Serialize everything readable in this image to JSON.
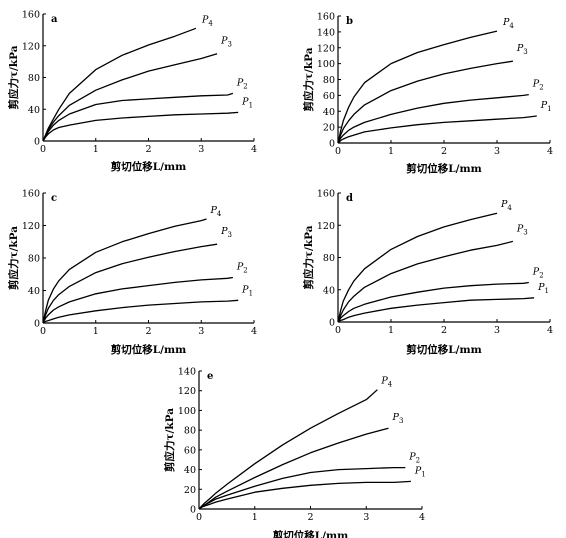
{
  "chart_data": [
    {
      "type": "line",
      "panel_label": "a",
      "xlabel": "剪切位移L/mm",
      "ylabel": "剪应力τ/kPa",
      "xlim": [
        0,
        4
      ],
      "ylim": [
        0,
        160
      ],
      "xticks": [
        "0",
        "1",
        "2",
        "3",
        "4"
      ],
      "yticks": [
        "0",
        "40",
        "80",
        "120",
        "160"
      ],
      "series": [
        {
          "name": "P",
          "sub": "1",
          "x": [
            0,
            0.05,
            0.1,
            0.2,
            0.3,
            0.5,
            1.0,
            1.5,
            2.0,
            2.5,
            3.0,
            3.5,
            3.7
          ],
          "y": [
            0,
            5,
            9,
            14,
            17,
            20,
            26,
            29,
            31,
            33,
            34,
            35,
            36
          ]
        },
        {
          "name": "P",
          "sub": "2",
          "x": [
            0,
            0.05,
            0.1,
            0.2,
            0.3,
            0.5,
            1.0,
            1.5,
            2.0,
            2.5,
            3.0,
            3.5,
            3.6
          ],
          "y": [
            0,
            6,
            12,
            20,
            26,
            34,
            46,
            51,
            53,
            55,
            57,
            58,
            60
          ]
        },
        {
          "name": "P",
          "sub": "3",
          "x": [
            0,
            0.05,
            0.1,
            0.2,
            0.3,
            0.5,
            1.0,
            1.5,
            2.0,
            2.5,
            3.0,
            3.3
          ],
          "y": [
            0,
            7,
            14,
            24,
            32,
            45,
            64,
            77,
            88,
            96,
            104,
            110
          ]
        },
        {
          "name": "P",
          "sub": "4",
          "x": [
            0,
            0.05,
            0.1,
            0.2,
            0.3,
            0.5,
            1.0,
            1.5,
            2.0,
            2.5,
            2.9
          ],
          "y": [
            0,
            8,
            16,
            28,
            40,
            60,
            90,
            108,
            121,
            132,
            142
          ]
        }
      ]
    },
    {
      "type": "line",
      "panel_label": "b",
      "xlabel": "剪切位移L/mm",
      "ylabel": "剪应力τ/kPa",
      "xlim": [
        0,
        4
      ],
      "ylim": [
        0,
        160
      ],
      "xticks": [
        "0",
        "1",
        "2",
        "3",
        "4"
      ],
      "yticks": [
        "0",
        "20",
        "40",
        "60",
        "80",
        "100",
        "120",
        "140",
        "160"
      ],
      "series": [
        {
          "name": "P",
          "sub": "1",
          "x": [
            0,
            0.05,
            0.1,
            0.2,
            0.3,
            0.5,
            1.0,
            1.5,
            2.0,
            2.5,
            3.0,
            3.5,
            3.75
          ],
          "y": [
            0,
            3,
            5,
            8,
            10,
            14,
            19,
            23,
            26,
            28,
            30,
            32,
            34
          ]
        },
        {
          "name": "P",
          "sub": "2",
          "x": [
            0,
            0.05,
            0.1,
            0.2,
            0.3,
            0.5,
            1.0,
            1.5,
            2.0,
            2.5,
            3.0,
            3.5,
            3.6
          ],
          "y": [
            0,
            6,
            10,
            16,
            20,
            26,
            36,
            44,
            50,
            54,
            57,
            60,
            61
          ]
        },
        {
          "name": "P",
          "sub": "3",
          "x": [
            0,
            0.05,
            0.1,
            0.2,
            0.3,
            0.5,
            1.0,
            1.5,
            2.0,
            2.5,
            3.0,
            3.3
          ],
          "y": [
            0,
            10,
            18,
            28,
            36,
            48,
            66,
            78,
            87,
            94,
            100,
            103
          ]
        },
        {
          "name": "P",
          "sub": "4",
          "x": [
            0,
            0.05,
            0.1,
            0.2,
            0.3,
            0.5,
            1.0,
            1.5,
            2.0,
            2.5,
            3.0
          ],
          "y": [
            0,
            15,
            28,
            45,
            58,
            76,
            100,
            114,
            124,
            133,
            141
          ]
        }
      ]
    },
    {
      "type": "line",
      "panel_label": "c",
      "xlabel": "剪切位移L/mm",
      "ylabel": "剪应力τ/kPa",
      "xlim": [
        0,
        4
      ],
      "ylim": [
        0,
        160
      ],
      "xticks": [
        "0",
        "1",
        "2",
        "3",
        "4"
      ],
      "yticks": [
        "0",
        "40",
        "80",
        "120",
        "160"
      ],
      "series": [
        {
          "name": "P",
          "sub": "1",
          "x": [
            0,
            0.05,
            0.1,
            0.2,
            0.3,
            0.5,
            1.0,
            1.5,
            2.0,
            2.5,
            3.0,
            3.5,
            3.7
          ],
          "y": [
            0,
            2,
            3,
            5,
            7,
            10,
            15,
            19,
            22,
            24,
            26,
            27,
            28
          ]
        },
        {
          "name": "P",
          "sub": "2",
          "x": [
            0,
            0.05,
            0.1,
            0.2,
            0.3,
            0.5,
            1.0,
            1.5,
            2.0,
            2.5,
            3.0,
            3.5,
            3.6
          ],
          "y": [
            0,
            6,
            10,
            16,
            20,
            26,
            36,
            42,
            46,
            50,
            53,
            55,
            56
          ]
        },
        {
          "name": "P",
          "sub": "3",
          "x": [
            0,
            0.05,
            0.1,
            0.2,
            0.3,
            0.5,
            1.0,
            1.5,
            2.0,
            2.5,
            3.0,
            3.3
          ],
          "y": [
            0,
            10,
            18,
            28,
            35,
            45,
            62,
            73,
            81,
            88,
            94,
            97
          ]
        },
        {
          "name": "P",
          "sub": "4",
          "x": [
            0,
            0.05,
            0.1,
            0.2,
            0.3,
            0.5,
            1.0,
            1.5,
            2.0,
            2.5,
            3.0,
            3.1
          ],
          "y": [
            0,
            15,
            28,
            42,
            52,
            66,
            87,
            100,
            110,
            119,
            126,
            128
          ]
        }
      ]
    },
    {
      "type": "line",
      "panel_label": "d",
      "xlabel": "剪切位移L/mm",
      "ylabel": "剪应力τ/kPa",
      "xlim": [
        0,
        4
      ],
      "ylim": [
        0,
        160
      ],
      "xticks": [
        "0",
        "1",
        "2",
        "3",
        "4"
      ],
      "yticks": [
        "0",
        "40",
        "80",
        "120",
        "160"
      ],
      "series": [
        {
          "name": "P",
          "sub": "1",
          "x": [
            0,
            0.05,
            0.1,
            0.2,
            0.3,
            0.5,
            1.0,
            1.5,
            2.0,
            2.5,
            3.0,
            3.5,
            3.7
          ],
          "y": [
            0,
            2,
            3,
            6,
            8,
            11,
            17,
            21,
            24,
            27,
            28,
            29,
            30
          ]
        },
        {
          "name": "P",
          "sub": "2",
          "x": [
            0,
            0.05,
            0.1,
            0.2,
            0.3,
            0.5,
            1.0,
            1.5,
            2.0,
            2.5,
            3.0,
            3.5,
            3.6
          ],
          "y": [
            0,
            5,
            8,
            13,
            17,
            22,
            31,
            37,
            42,
            45,
            47,
            48,
            49
          ]
        },
        {
          "name": "P",
          "sub": "3",
          "x": [
            0,
            0.05,
            0.1,
            0.2,
            0.3,
            0.5,
            1.0,
            1.5,
            2.0,
            2.5,
            3.0,
            3.3
          ],
          "y": [
            0,
            8,
            15,
            25,
            32,
            43,
            60,
            72,
            81,
            89,
            95,
            100
          ]
        },
        {
          "name": "P",
          "sub": "4",
          "x": [
            0,
            0.05,
            0.1,
            0.2,
            0.3,
            0.5,
            1.0,
            1.5,
            2.0,
            2.5,
            3.0
          ],
          "y": [
            0,
            14,
            26,
            40,
            51,
            66,
            90,
            106,
            118,
            127,
            135
          ]
        }
      ]
    },
    {
      "type": "line",
      "panel_label": "e",
      "xlabel": "剪切位移L/mm",
      "ylabel": "剪应力τ/kPa",
      "xlim": [
        0,
        4
      ],
      "ylim": [
        0,
        140
      ],
      "xticks": [
        "0",
        "1",
        "2",
        "3",
        "4"
      ],
      "yticks": [
        "0",
        "20",
        "40",
        "60",
        "80",
        "100",
        "120",
        "140"
      ],
      "series": [
        {
          "name": "P",
          "sub": "1",
          "x": [
            0,
            0.05,
            0.1,
            0.2,
            0.3,
            0.5,
            1.0,
            1.5,
            2.0,
            2.5,
            3.0,
            3.5,
            3.8
          ],
          "y": [
            0,
            2,
            3,
            5,
            7,
            10,
            17,
            21,
            24,
            26,
            27,
            27,
            28
          ]
        },
        {
          "name": "P",
          "sub": "2",
          "x": [
            0,
            0.05,
            0.1,
            0.2,
            0.3,
            0.5,
            1.0,
            1.5,
            2.0,
            2.5,
            3.0,
            3.5,
            3.7
          ],
          "y": [
            0,
            2,
            4,
            7,
            10,
            14,
            23,
            31,
            37,
            40,
            41,
            42,
            42
          ]
        },
        {
          "name": "P",
          "sub": "3",
          "x": [
            0,
            0.05,
            0.1,
            0.2,
            0.3,
            0.5,
            1.0,
            1.5,
            2.0,
            2.5,
            3.0,
            3.4
          ],
          "y": [
            0,
            2,
            4,
            8,
            12,
            18,
            32,
            45,
            57,
            67,
            76,
            82
          ]
        },
        {
          "name": "P",
          "sub": "4",
          "x": [
            0,
            0.05,
            0.1,
            0.2,
            0.3,
            0.5,
            1.0,
            1.5,
            2.0,
            2.5,
            3.0,
            3.2
          ],
          "y": [
            0,
            3,
            6,
            11,
            16,
            25,
            46,
            65,
            82,
            97,
            111,
            121
          ]
        }
      ]
    }
  ]
}
